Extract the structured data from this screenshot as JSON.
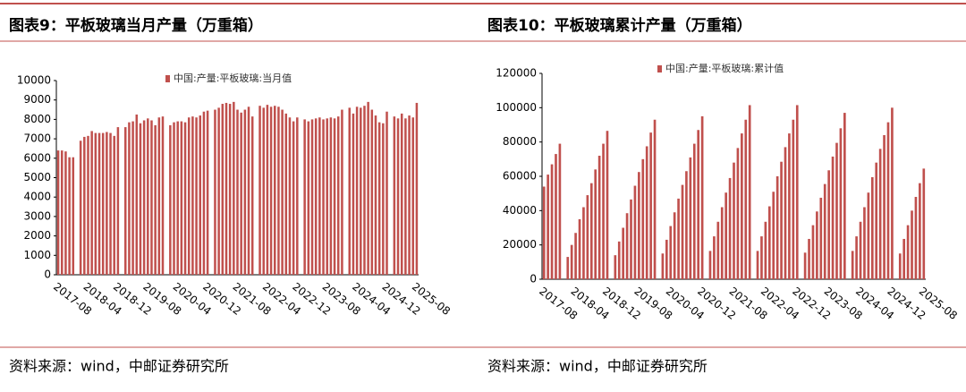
{
  "chart_data": [
    {
      "type": "bar",
      "title": "图表9：平板玻璃当月产量（万重箱）",
      "source": "资料来源：wind，中邮证券研究所",
      "categories": [
        "2017-08",
        null,
        null,
        null,
        null,
        null,
        null,
        null,
        "2018-04",
        null,
        null,
        null,
        null,
        null,
        null,
        null,
        "2018-12",
        null,
        null,
        null,
        null,
        null,
        null,
        null,
        "2019-08",
        null,
        null,
        null,
        null,
        null,
        null,
        null,
        "2020-04",
        null,
        null,
        null,
        null,
        null,
        null,
        null,
        "2020-12",
        null,
        null,
        null,
        null,
        null,
        null,
        null,
        "2021-08",
        null,
        null,
        null,
        null,
        null,
        null,
        null,
        "2022-04",
        null,
        null,
        null,
        null,
        null,
        null,
        null,
        "2022-12",
        null,
        null,
        null,
        null,
        null,
        null,
        null,
        "2023-08",
        null,
        null,
        null,
        null,
        null,
        null,
        null,
        "2024-04",
        null,
        null,
        null,
        null,
        null,
        null,
        null,
        "2024-12",
        null,
        null,
        null,
        null,
        null,
        null,
        null,
        "2025-08"
      ],
      "series": [
        {
          "name": "中国:产量:平板玻璃:当月值",
          "color": "#c0504d",
          "values": [
            6400,
            6400,
            6350,
            6050,
            6050,
            null,
            6900,
            7100,
            7150,
            7400,
            7300,
            7300,
            7300,
            7350,
            7300,
            7150,
            7600,
            null,
            7600,
            7850,
            7900,
            8250,
            7800,
            7950,
            8050,
            7950,
            7700,
            8100,
            8150,
            null,
            7700,
            7850,
            7900,
            7900,
            7850,
            8100,
            8150,
            8100,
            8200,
            8400,
            8450,
            null,
            8500,
            8600,
            8800,
            8850,
            8800,
            8900,
            8500,
            8350,
            8500,
            8650,
            8150,
            null,
            8700,
            8600,
            8750,
            8650,
            8700,
            8650,
            8500,
            8300,
            8100,
            7900,
            8100,
            null,
            8000,
            7900,
            8000,
            8050,
            8100,
            8000,
            8050,
            8100,
            8050,
            8150,
            8500,
            null,
            8600,
            8300,
            8650,
            8600,
            8700,
            8900,
            8500,
            8200,
            7850,
            7800,
            8400,
            null,
            8150,
            8050,
            8300,
            8050,
            8200,
            8100,
            8850
          ]
        }
      ],
      "ylim": [
        0,
        10000
      ],
      "yticks": [
        0,
        1000,
        2000,
        3000,
        4000,
        5000,
        6000,
        7000,
        8000,
        9000,
        10000
      ]
    },
    {
      "type": "bar",
      "title": "图表10：平板玻璃累计产量（万重箱）",
      "source": "资料来源：wind，中邮证券研究所",
      "categories": [
        "2017-08",
        null,
        null,
        null,
        null,
        null,
        null,
        null,
        "2018-04",
        null,
        null,
        null,
        null,
        null,
        null,
        null,
        "2018-12",
        null,
        null,
        null,
        null,
        null,
        null,
        null,
        "2019-08",
        null,
        null,
        null,
        null,
        null,
        null,
        null,
        "2020-04",
        null,
        null,
        null,
        null,
        null,
        null,
        null,
        "2020-12",
        null,
        null,
        null,
        null,
        null,
        null,
        null,
        "2021-08",
        null,
        null,
        null,
        null,
        null,
        null,
        null,
        "2022-04",
        null,
        null,
        null,
        null,
        null,
        null,
        null,
        "2022-12",
        null,
        null,
        null,
        null,
        null,
        null,
        null,
        "2023-08",
        null,
        null,
        null,
        null,
        null,
        null,
        null,
        "2024-04",
        null,
        null,
        null,
        null,
        null,
        null,
        null,
        "2024-12",
        null,
        null,
        null,
        null,
        null,
        null,
        null,
        "2025-08"
      ],
      "series": [
        {
          "name": "中国:产量:平板玻璃:累计值",
          "color": "#c0504d",
          "values": [
            54000,
            61000,
            67000,
            73000,
            79000,
            null,
            13000,
            20000,
            27000,
            35000,
            42000,
            49000,
            56000,
            64000,
            72000,
            79000,
            86500,
            null,
            14000,
            22000,
            30000,
            38500,
            46500,
            54500,
            62500,
            70000,
            77500,
            85500,
            93000,
            null,
            15000,
            23000,
            31000,
            39000,
            47000,
            55000,
            63000,
            71000,
            79000,
            87000,
            95000,
            null,
            16500,
            25000,
            33500,
            42000,
            50500,
            59000,
            68000,
            76500,
            85000,
            93000,
            101500,
            null,
            16500,
            25000,
            33500,
            42500,
            51000,
            60000,
            68500,
            77000,
            85000,
            93000,
            101500,
            null,
            15500,
            23500,
            31500,
            39500,
            47500,
            55500,
            63500,
            71500,
            79500,
            88000,
            97000,
            null,
            16500,
            25000,
            33500,
            42000,
            50500,
            59500,
            68000,
            76000,
            84000,
            91500,
            100000,
            null,
            15000,
            23500,
            31500,
            40000,
            48000,
            56000,
            64500
          ]
        }
      ],
      "ylim": [
        0,
        120000
      ],
      "yticks": [
        0,
        20000,
        40000,
        60000,
        80000,
        100000,
        120000
      ]
    }
  ]
}
